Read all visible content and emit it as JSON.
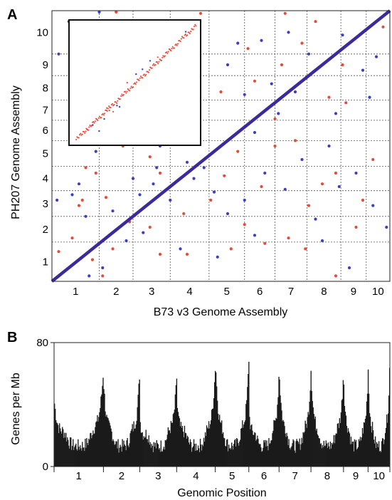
{
  "figure": {
    "panel_a_label": "A",
    "panel_b_label": "B"
  },
  "colors": {
    "diagonal": "#3d2a9a",
    "dot_blue": "#3b3fc4",
    "dot_red": "#e84a36",
    "grid": "#555555",
    "bars": "#1a1a1a"
  },
  "chart_data": [
    {
      "type": "scatter",
      "panel": "A",
      "xlabel": "B73 v3 Genome Assembly",
      "ylabel": "PH207 Genome Assembly",
      "x_ticks": [
        "1",
        "2",
        "3",
        "4",
        "5",
        "6",
        "7",
        "8",
        "9",
        "10"
      ],
      "y_ticks": [
        "1",
        "2",
        "3",
        "4",
        "5",
        "6",
        "7",
        "8",
        "9",
        "10"
      ],
      "x_boundaries": [
        0,
        0.14,
        0.24,
        0.35,
        0.465,
        0.57,
        0.66,
        0.755,
        0.855,
        0.93,
        1.0
      ],
      "y_boundaries": [
        0,
        0.145,
        0.24,
        0.335,
        0.425,
        0.52,
        0.595,
        0.67,
        0.76,
        0.84,
        1.0
      ],
      "xlim": [
        0,
        1
      ],
      "ylim": [
        0,
        1
      ],
      "grid": true,
      "diagonal": {
        "from": [
          0,
          0
        ],
        "to": [
          1,
          1
        ],
        "series": "collinear"
      },
      "series": [
        {
          "color_key": "dot_blue",
          "points": [
            [
              0.05,
              0.96
            ],
            [
              0.14,
              0.995
            ],
            [
              0.55,
              0.88
            ],
            [
              0.6,
              0.55
            ],
            [
              0.67,
              0.62
            ],
            [
              0.72,
              0.7
            ],
            [
              0.85,
              0.35
            ],
            [
              0.9,
              0.4
            ],
            [
              0.96,
              0.83
            ],
            [
              0.88,
              0.05
            ],
            [
              0.78,
              0.23
            ],
            [
              0.57,
              0.3
            ],
            [
              0.52,
              0.25
            ],
            [
              0.4,
              0.44
            ],
            [
              0.45,
              0.42
            ],
            [
              0.3,
              0.36
            ],
            [
              0.24,
              0.38
            ],
            [
              0.35,
              0.3
            ],
            [
              0.42,
              0.38
            ],
            [
              0.15,
              0.05
            ],
            [
              0.22,
              0.15
            ],
            [
              0.1,
              0.24
            ],
            [
              0.08,
              0.36
            ],
            [
              0.13,
              0.48
            ],
            [
              0.25,
              0.55
            ],
            [
              0.32,
              0.5
            ],
            [
              0.43,
              0.6
            ],
            [
              0.48,
              0.48
            ],
            [
              0.63,
              0.4
            ],
            [
              0.74,
              0.45
            ],
            [
              0.82,
              0.5
            ],
            [
              0.92,
              0.78
            ],
            [
              0.7,
              0.92
            ],
            [
              0.62,
              0.89
            ],
            [
              0.52,
              0.8
            ],
            [
              0.84,
              0.62
            ],
            [
              0.94,
              0.68
            ],
            [
              0.99,
              0.2
            ],
            [
              0.06,
              0.32
            ],
            [
              0.18,
              0.26
            ],
            [
              0.27,
              0.18
            ],
            [
              0.38,
              0.12
            ],
            [
              0.49,
              0.09
            ],
            [
              0.6,
              0.17
            ],
            [
              0.69,
              0.34
            ],
            [
              0.8,
              0.15
            ],
            [
              0.95,
              0.28
            ],
            [
              0.31,
              0.42
            ],
            [
              0.57,
              0.69
            ],
            [
              0.65,
              0.73
            ],
            [
              0.76,
              0.84
            ],
            [
              0.86,
              0.91
            ],
            [
              0.015,
              0.3
            ],
            [
              0.02,
              0.84
            ],
            [
              0.11,
              0.02
            ],
            [
              0.26,
              0.32
            ],
            [
              0.48,
              0.33
            ]
          ]
        },
        {
          "color_key": "dot_red",
          "points": [
            [
              0.1,
              0.42
            ],
            [
              0.09,
              0.3
            ],
            [
              0.13,
              0.4
            ],
            [
              0.23,
              0.22
            ],
            [
              0.32,
              0.1
            ],
            [
              0.4,
              0.1
            ],
            [
              0.53,
              0.12
            ],
            [
              0.62,
              0.35
            ],
            [
              0.66,
              0.5
            ],
            [
              0.72,
              0.52
            ],
            [
              0.8,
              0.36
            ],
            [
              0.84,
              0.02
            ],
            [
              0.9,
              0.2
            ],
            [
              0.98,
              0.94
            ],
            [
              0.78,
              0.96
            ],
            [
              0.74,
              0.88
            ],
            [
              0.68,
              0.8
            ],
            [
              0.58,
              0.86
            ],
            [
              0.92,
              0.92
            ],
            [
              0.6,
              0.74
            ],
            [
              0.66,
              0.6
            ],
            [
              0.7,
              0.16
            ],
            [
              0.57,
              0.21
            ],
            [
              0.47,
              0.3
            ],
            [
              0.36,
              0.36
            ],
            [
              0.29,
              0.46
            ],
            [
              0.21,
              0.5
            ],
            [
              0.18,
              0.12
            ],
            [
              0.12,
              0.08
            ],
            [
              0.06,
              0.16
            ],
            [
              0.02,
              0.11
            ],
            [
              0.15,
              0.02
            ],
            [
              0.27,
              0.6
            ],
            [
              0.5,
              0.7
            ],
            [
              0.82,
              0.68
            ],
            [
              0.86,
              0.8
            ],
            [
              0.95,
              0.45
            ],
            [
              0.44,
              0.99
            ],
            [
              0.19,
              0.995
            ],
            [
              0.69,
              0.99
            ],
            [
              0.55,
              0.48
            ],
            [
              0.76,
              0.28
            ],
            [
              0.87,
              0.66
            ],
            [
              0.63,
              0.14
            ],
            [
              0.39,
              0.25
            ],
            [
              0.16,
              0.31
            ],
            [
              0.32,
              0.4
            ],
            [
              0.51,
              0.39
            ],
            [
              0.75,
              0.12
            ],
            [
              0.84,
              0.4
            ],
            [
              0.29,
              0.2
            ],
            [
              0.08,
              0.28
            ],
            [
              0.92,
              0.3
            ]
          ]
        }
      ]
    },
    {
      "type": "scatter",
      "panel": "A-inset",
      "xlim": [
        0,
        1
      ],
      "ylim": [
        0,
        1
      ],
      "main_trace": {
        "color_key": "dot_red",
        "from": [
          0.04,
          0.03
        ],
        "to": [
          0.98,
          0.97
        ]
      },
      "points_blue": [
        [
          0.17,
          0.15
        ],
        [
          0.26,
          0.2
        ],
        [
          0.36,
          0.31
        ],
        [
          0.38,
          0.3
        ],
        [
          0.51,
          0.57
        ],
        [
          0.56,
          0.61
        ],
        [
          0.62,
          0.68
        ],
        [
          0.9,
          0.92
        ],
        [
          0.22,
          0.1
        ]
      ],
      "points_red": [
        [
          0.28,
          0.29
        ],
        [
          0.3,
          0.27
        ],
        [
          0.33,
          0.26
        ],
        [
          0.44,
          0.5
        ],
        [
          0.12,
          0.12
        ],
        [
          0.68,
          0.71
        ]
      ]
    },
    {
      "type": "bar",
      "panel": "B",
      "xlabel": "Genomic Position",
      "ylabel": "Genes per Mb",
      "y_tick_labels": [
        "0",
        "80"
      ],
      "ylim": [
        0,
        80
      ],
      "x_ticks": [
        "1",
        "2",
        "3",
        "4",
        "5",
        "6",
        "7",
        "8",
        "9",
        "10"
      ],
      "chromosome_boundaries": [
        0,
        0.147,
        0.255,
        0.365,
        0.48,
        0.58,
        0.67,
        0.765,
        0.862,
        0.935,
        1.0
      ],
      "centromere_fraction": [
        0.55,
        0.62,
        0.5,
        0.58,
        0.65,
        0.45,
        0.55,
        0.52,
        0.48,
        0.55
      ],
      "edge_peak_values": [
        [
          42,
          63
        ],
        [
          55,
          62
        ],
        [
          30,
          57
        ],
        [
          42,
          64
        ],
        [
          72,
          70
        ],
        [
          35,
          62
        ],
        [
          64,
          63
        ],
        [
          62,
          63
        ],
        [
          59,
          63
        ],
        [
          63,
          72
        ]
      ],
      "base_value": 12,
      "total_bars": 470
    }
  ]
}
